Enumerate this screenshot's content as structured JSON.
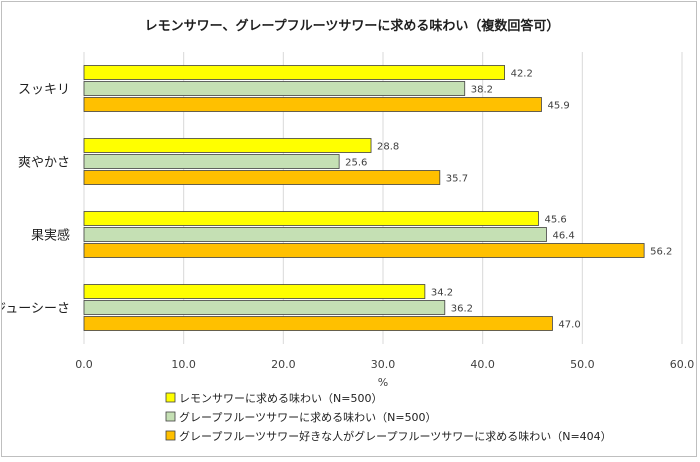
{
  "chart_data": {
    "type": "bar",
    "orientation": "horizontal",
    "title": "レモンサワー、グレープフルーツサワーに求める味わい（複数回答可）",
    "xlabel": "%",
    "ylabel": "",
    "xlim": [
      0,
      60
    ],
    "xticks": [
      "0.0",
      "10.0",
      "20.0",
      "30.0",
      "40.0",
      "50.0",
      "60.0"
    ],
    "grid": true,
    "legend_position": "bottom",
    "categories": [
      "スッキリ",
      "爽やかさ",
      "果実感",
      "ジューシーさ"
    ],
    "series": [
      {
        "name": "レモンサワーに求める味わい（N=500）",
        "color": "#ffff00",
        "values": [
          42.2,
          28.8,
          45.6,
          34.2
        ],
        "labels": [
          "42.2",
          "28.8",
          "45.6",
          "34.2"
        ]
      },
      {
        "name": "グレープフルーツサワーに求める味わい（N=500）",
        "color": "#c5e0b4",
        "values": [
          38.2,
          25.6,
          46.4,
          36.2
        ],
        "labels": [
          "38.2",
          "25.6",
          "46.4",
          "36.2"
        ]
      },
      {
        "name": "グレープフルーツサワー好きな人がグレープフルーツサワーに求める味わい（N=404）",
        "color": "#ffc000",
        "values": [
          45.9,
          35.7,
          56.2,
          47.0
        ],
        "labels": [
          "45.9",
          "35.7",
          "56.2",
          "47.0"
        ]
      }
    ]
  }
}
